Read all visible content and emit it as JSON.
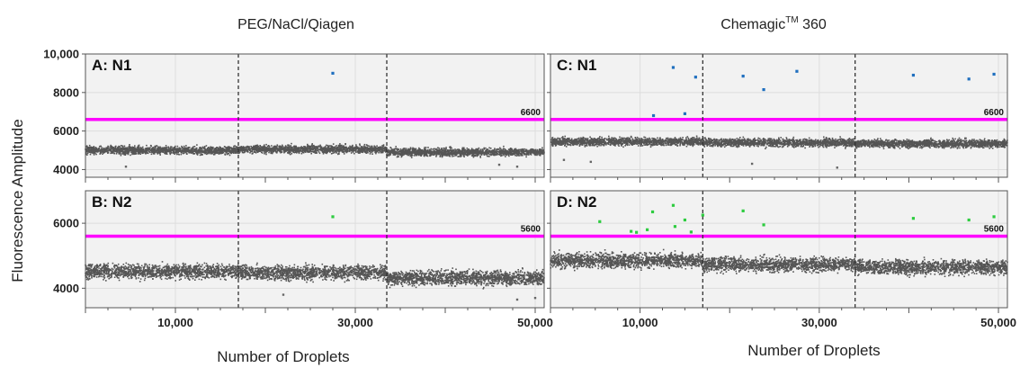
{
  "figure": {
    "col_titles": [
      "PEG/NaCl/Qiagen",
      "Chemagic",
      "TM",
      " 360"
    ],
    "ylabel": "Fluorescence Amplitude",
    "xlabel": "Number of Droplets"
  },
  "colors": {
    "panel_bg": "#f2f2f2",
    "cluster": "#555555",
    "threshold": "#ff00ff",
    "n1_positive": "#1f6fbf",
    "n2_positive": "#2ecc40",
    "well_divider": "#333333"
  },
  "chart_data": [
    {
      "type": "scatter",
      "panel_label": "A:  N1",
      "xlim": [
        0,
        51000
      ],
      "ylim": [
        3600,
        10000
      ],
      "yticks": [
        4000,
        6000,
        8000,
        10000
      ],
      "ytick_labels": [
        "4000",
        "6000",
        "8000",
        "10,000"
      ],
      "xticks": [
        10000,
        30000,
        50000
      ],
      "xtick_labels": [],
      "threshold": 6600,
      "threshold_label": "6600",
      "well_dividers": [
        17000,
        33500
      ],
      "negative_band": {
        "segments": [
          [
            0,
            17000,
            5000
          ],
          [
            17000,
            33500,
            5050
          ],
          [
            33500,
            51000,
            4900
          ]
        ],
        "spread": 200
      },
      "outliers_low": [
        [
          4500,
          4150
        ],
        [
          46000,
          4250
        ],
        [
          48000,
          4150
        ]
      ],
      "positive_color": "n1",
      "positives": [
        [
          27500,
          9000
        ]
      ]
    },
    {
      "type": "scatter",
      "panel_label": "B: N2",
      "xlim": [
        0,
        51000
      ],
      "ylim": [
        3400,
        7000
      ],
      "yticks": [
        4000,
        6000
      ],
      "ytick_labels": [
        "4000",
        "6000"
      ],
      "xticks": [
        10000,
        30000,
        50000
      ],
      "xtick_labels": [
        "10,000",
        "30,000",
        "50,000"
      ],
      "threshold": 5600,
      "threshold_label": "5600",
      "well_dividers": [
        17000,
        33500
      ],
      "negative_band": {
        "segments": [
          [
            0,
            17000,
            4520
          ],
          [
            17000,
            33500,
            4480
          ],
          [
            33500,
            51000,
            4320
          ]
        ],
        "spread": 220
      },
      "outliers_low": [
        [
          22000,
          3800
        ],
        [
          48000,
          3650
        ],
        [
          50000,
          3700
        ]
      ],
      "positive_color": "n2",
      "positives": [
        [
          27500,
          6200
        ]
      ]
    },
    {
      "type": "scatter",
      "panel_label": "C: N1",
      "xlim": [
        0,
        51000
      ],
      "ylim": [
        3600,
        10000
      ],
      "yticks": [
        4000,
        6000,
        8000,
        10000
      ],
      "ytick_labels": [],
      "xticks": [
        10000,
        30000,
        50000
      ],
      "xtick_labels": [],
      "threshold": 6600,
      "threshold_label": "6600",
      "well_dividers": [
        17000,
        34000
      ],
      "negative_band": {
        "segments": [
          [
            0,
            17000,
            5450
          ],
          [
            17000,
            34000,
            5400
          ],
          [
            34000,
            51000,
            5350
          ]
        ],
        "spread": 200
      },
      "outliers_low": [
        [
          1500,
          4500
        ],
        [
          4500,
          4400
        ],
        [
          22500,
          4300
        ],
        [
          32000,
          4100
        ]
      ],
      "positive_color": "n1",
      "positives": [
        [
          11500,
          6800
        ],
        [
          13700,
          9300
        ],
        [
          15000,
          6900
        ],
        [
          16200,
          8800
        ],
        [
          21500,
          8850
        ],
        [
          23800,
          8150
        ],
        [
          27500,
          9100
        ],
        [
          40500,
          8900
        ],
        [
          46700,
          8700
        ],
        [
          49500,
          8950
        ]
      ]
    },
    {
      "type": "scatter",
      "panel_label": "D: N2",
      "xlim": [
        0,
        51000
      ],
      "ylim": [
        3400,
        7000
      ],
      "yticks": [
        4000,
        6000
      ],
      "ytick_labels": [],
      "xticks": [
        10000,
        30000,
        50000
      ],
      "xtick_labels": [
        "10,000",
        "30,000",
        "50,000"
      ],
      "threshold": 5600,
      "threshold_label": "5600",
      "well_dividers": [
        17000,
        34000
      ],
      "negative_band": {
        "segments": [
          [
            0,
            17000,
            4850
          ],
          [
            17000,
            34000,
            4730
          ],
          [
            34000,
            51000,
            4650
          ]
        ],
        "spread": 220
      },
      "outliers_low": [],
      "positive_color": "n2",
      "positives": [
        [
          5500,
          6050
        ],
        [
          9000,
          5750
        ],
        [
          9600,
          5720
        ],
        [
          10800,
          5800
        ],
        [
          11400,
          6350
        ],
        [
          13700,
          6550
        ],
        [
          13900,
          5900
        ],
        [
          15000,
          6100
        ],
        [
          15700,
          5730
        ],
        [
          17000,
          6250
        ],
        [
          21500,
          6380
        ],
        [
          23800,
          5950
        ],
        [
          40500,
          6150
        ],
        [
          46700,
          6100
        ],
        [
          49500,
          6200
        ]
      ]
    }
  ]
}
